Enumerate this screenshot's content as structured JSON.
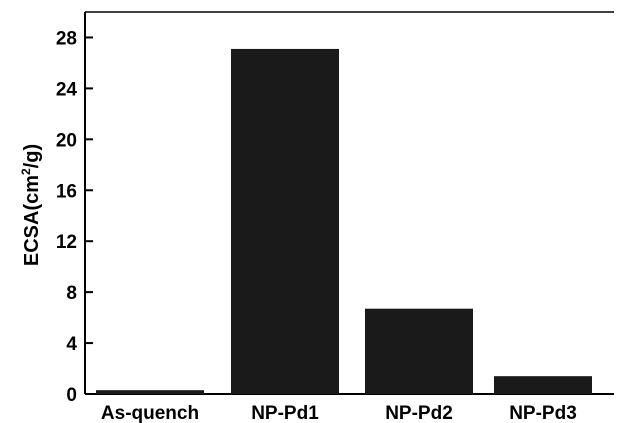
{
  "chart_data": {
    "type": "bar",
    "categories": [
      "As-quench",
      "NP-Pd1",
      "NP-Pd2",
      "NP-Pd3"
    ],
    "values": [
      0.3,
      27.1,
      6.7,
      1.4
    ],
    "ylabel": "ECSA(cm²/g)",
    "ylabel_parts": {
      "prefix": "ECSA(cm",
      "sup": "2",
      "suffix": "/g)"
    },
    "xlabel": "",
    "ylim": [
      0,
      30
    ],
    "yticks": [
      0,
      4,
      8,
      12,
      16,
      20,
      24,
      28
    ],
    "grid": false,
    "bar_color": "#1a1a1a"
  }
}
